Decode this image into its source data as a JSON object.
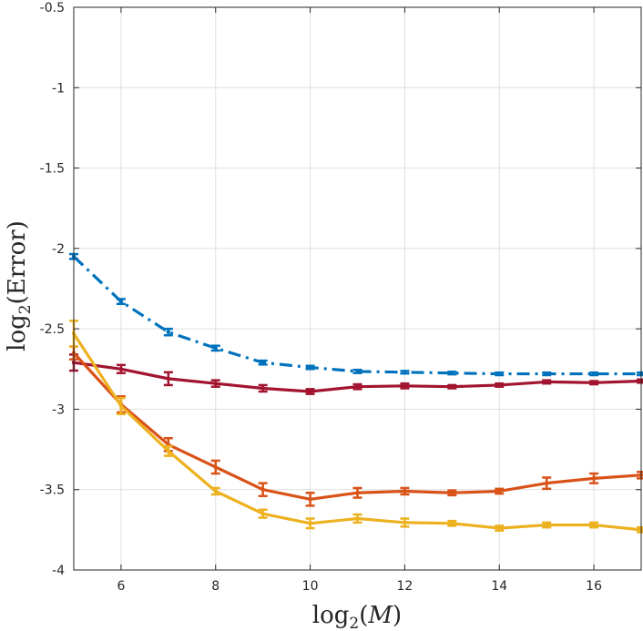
{
  "chart_data": {
    "type": "line",
    "title": "",
    "xlabel": "log2(M)",
    "ylabel": "log2(Error)",
    "xlabel_parts": {
      "fn": "log",
      "sub": "2",
      "open": "(",
      "var": "M",
      "close": ")"
    },
    "ylabel_parts": {
      "fn": "log",
      "sub": "2",
      "open": "(",
      "var": "Error",
      "close": ")"
    },
    "xlim": [
      5,
      17
    ],
    "ylim": [
      -4,
      -0.5
    ],
    "grid": true,
    "x_ticks": [
      6,
      8,
      10,
      12,
      14,
      16
    ],
    "x_tick_labels": [
      "6",
      "8",
      "10",
      "12",
      "14",
      "16"
    ],
    "y_ticks": [
      -4,
      -3.5,
      -3,
      -2.5,
      -2,
      -1.5,
      -1,
      -0.5
    ],
    "y_tick_labels": [
      "-4",
      "-3.5",
      "-3",
      "-2.5",
      "-2",
      "-1.5",
      "-1",
      "-0.5"
    ],
    "x": [
      5,
      6,
      7,
      8,
      9,
      10,
      11,
      12,
      13,
      14,
      15,
      16,
      17
    ],
    "series": [
      {
        "name": "blue-dashdot",
        "color": "#0072BD",
        "style": "dashdot",
        "values": [
          -2.05,
          -2.33,
          -2.52,
          -2.62,
          -2.71,
          -2.74,
          -2.765,
          -2.77,
          -2.775,
          -2.78,
          -2.78,
          -2.78,
          -2.78
        ],
        "err": [
          0.015,
          0.015,
          0.02,
          0.015,
          0.012,
          0.01,
          0.01,
          0.008,
          0.008,
          0.008,
          0.008,
          0.008,
          0.008
        ]
      },
      {
        "name": "darkred",
        "color": "#A2142F",
        "style": "solid",
        "values": [
          -2.71,
          -2.75,
          -2.81,
          -2.84,
          -2.87,
          -2.89,
          -2.86,
          -2.855,
          -2.86,
          -2.85,
          -2.83,
          -2.835,
          -2.825
        ],
        "err": [
          0.05,
          0.025,
          0.04,
          0.02,
          0.02,
          0.015,
          0.015,
          0.015,
          0.01,
          0.01,
          0.01,
          0.01,
          0.01
        ]
      },
      {
        "name": "orange",
        "color": "#D95319",
        "style": "solid",
        "values": [
          -2.65,
          -2.97,
          -3.22,
          -3.36,
          -3.5,
          -3.56,
          -3.52,
          -3.51,
          -3.52,
          -3.51,
          -3.46,
          -3.43,
          -3.41
        ],
        "err": [
          0.04,
          0.05,
          0.04,
          0.04,
          0.04,
          0.04,
          0.03,
          0.02,
          0.015,
          0.015,
          0.035,
          0.03,
          0.02
        ]
      },
      {
        "name": "yellow",
        "color": "#EDB120",
        "style": "solid",
        "values": [
          -2.53,
          -2.98,
          -3.26,
          -3.51,
          -3.65,
          -3.71,
          -3.68,
          -3.705,
          -3.71,
          -3.74,
          -3.72,
          -3.72,
          -3.75
        ],
        "err": [
          0.08,
          0.05,
          0.03,
          0.02,
          0.025,
          0.03,
          0.025,
          0.025,
          0.015,
          0.015,
          0.015,
          0.015,
          0.015
        ]
      }
    ]
  }
}
